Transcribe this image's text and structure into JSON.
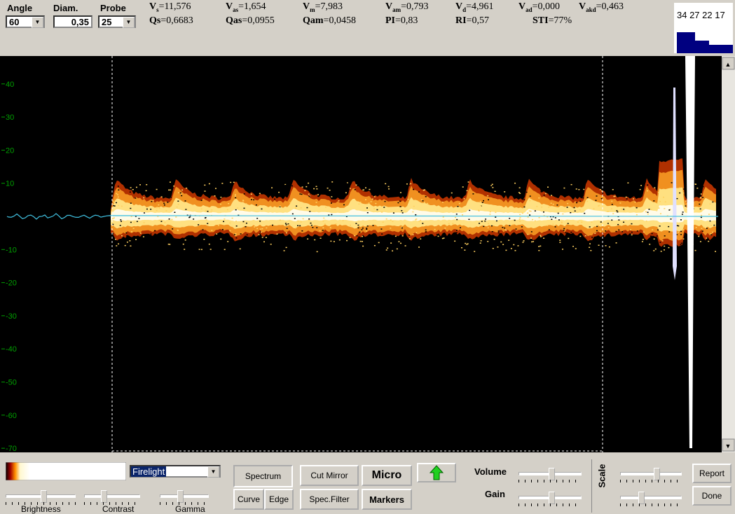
{
  "top_bar": {
    "angle": {
      "label": "Angle",
      "value": "60"
    },
    "diameter": {
      "label": "Diam.",
      "value": "0,35"
    },
    "probe": {
      "label": "Probe",
      "value": "25"
    },
    "measurements_row1": [
      {
        "symbol": "V",
        "subscript": "s",
        "value": "=11,576"
      },
      {
        "symbol": "V",
        "subscript": "as",
        "value": "=1,654"
      },
      {
        "symbol": "V",
        "subscript": "m",
        "value": "=7,983"
      },
      {
        "symbol": "V",
        "subscript": "am",
        "value": "=0,793"
      },
      {
        "symbol": "V",
        "subscript": "d",
        "value": "=4,961"
      },
      {
        "symbol": "V",
        "subscript": "ad",
        "value": "=0,000"
      },
      {
        "symbol": "V",
        "subscript": "akd",
        "value": "=0,463"
      }
    ],
    "measurements_row2": [
      {
        "symbol": "Qs",
        "value": "=0,6683"
      },
      {
        "symbol": "Qas",
        "value": "=0,0955"
      },
      {
        "symbol": "Qam",
        "value": "=0,0458"
      },
      {
        "symbol": "PI",
        "value": "=0,83"
      },
      {
        "symbol": "RI",
        "value": "=0,57"
      },
      {
        "symbol": "STI",
        "value": "=77%"
      }
    ],
    "mini_display": "34 27 22 17"
  },
  "spectrum": {
    "axis_ticks": [
      40,
      30,
      20,
      10,
      -10,
      -20,
      -30,
      -40,
      -50,
      -60,
      -70
    ]
  },
  "bottom_panel": {
    "color_map": "Firelight",
    "brightness": "Brightness",
    "contrast": "Contrast",
    "gamma": "Gamma",
    "buttons": {
      "spectrum": "Spectrum",
      "curve": "Curve",
      "edge": "Edge",
      "cut_mirror": "Cut Mirror",
      "spec_filter": "Spec.Filter",
      "micro": "Micro",
      "markers": "Markers",
      "report": "Report",
      "done": "Done"
    },
    "volume": "Volume",
    "gain": "Gain",
    "scale": "Scale"
  }
}
